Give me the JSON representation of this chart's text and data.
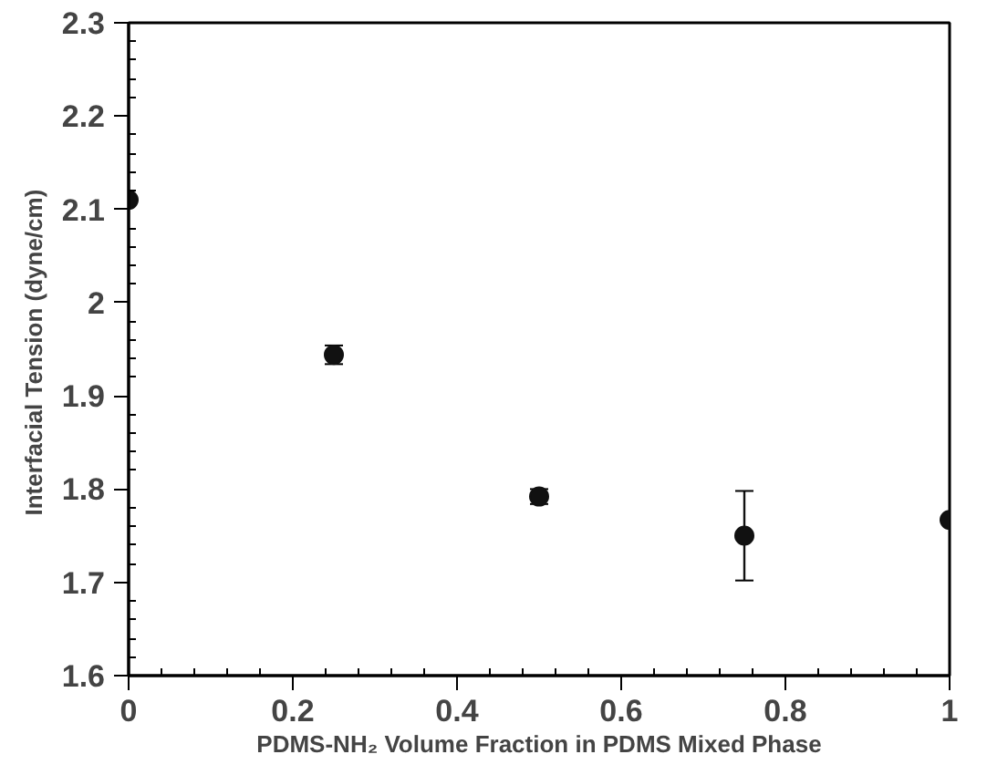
{
  "chart_data": {
    "type": "scatter",
    "xlabel": "PDMS-NH₂ Volume Fraction in PDMS Mixed Phase",
    "ylabel": "Interfacial Tension  (dyne/cm)",
    "x": [
      0,
      0.25,
      0.5,
      0.75,
      1
    ],
    "values": [
      2.11,
      1.944,
      1.792,
      1.75,
      1.767
    ],
    "errors": [
      null,
      0.01,
      0.008,
      0.048,
      null
    ],
    "color": "#111111",
    "marker": "circle",
    "grid": false,
    "xlim": [
      0,
      1
    ],
    "xticks": [
      0,
      0.2,
      0.4,
      0.6,
      0.8,
      1
    ],
    "ylim": [
      1.6,
      2.3
    ],
    "yticks": [
      1.6,
      1.7,
      1.8,
      1.9,
      2,
      2.1,
      2.2,
      2.3
    ]
  }
}
